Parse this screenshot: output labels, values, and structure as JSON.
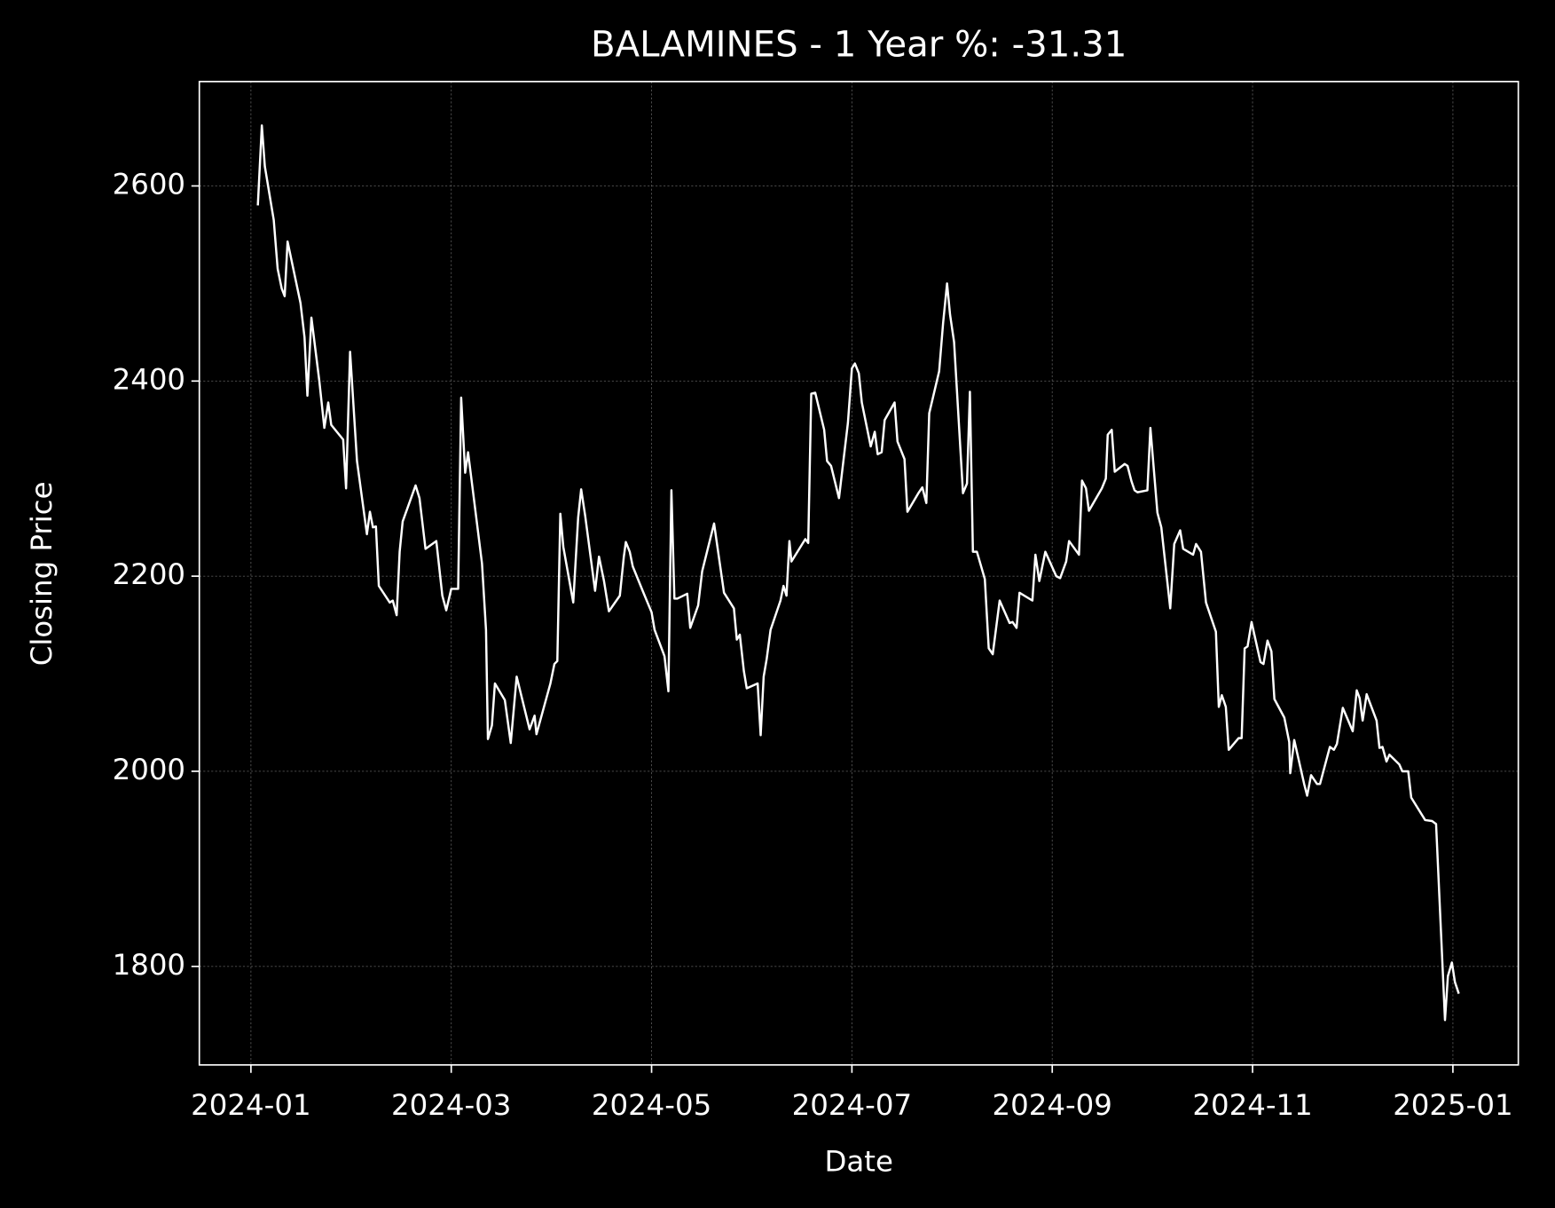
{
  "chart_data": {
    "type": "line",
    "title": "BALAMINES - 1 Year %: -31.31",
    "x_label": "Date",
    "y_label": "Closing Price",
    "color": "#ffffff",
    "grid": true,
    "xlim": [
      -0.515,
      12.653
    ],
    "ylim": [
      1699,
      2707
    ],
    "xticks": [
      {
        "value": 0,
        "label": "2024-01"
      },
      {
        "value": 2,
        "label": "2024-03"
      },
      {
        "value": 4,
        "label": "2024-05"
      },
      {
        "value": 6,
        "label": "2024-07"
      },
      {
        "value": 8,
        "label": "2024-09"
      },
      {
        "value": 10,
        "label": "2024-11"
      },
      {
        "value": 12,
        "label": "2025-01"
      }
    ],
    "yticks": [
      1800,
      2000,
      2200,
      2400,
      2600
    ],
    "x": [
      0.069,
      0.109,
      0.139,
      0.228,
      0.267,
      0.307,
      0.337,
      0.366,
      0.495,
      0.535,
      0.564,
      0.604,
      0.683,
      0.733,
      0.772,
      0.802,
      0.921,
      0.95,
      0.99,
      1.059,
      1.158,
      1.188,
      1.218,
      1.248,
      1.277,
      1.386,
      1.416,
      1.455,
      1.485,
      1.515,
      1.644,
      1.683,
      1.743,
      1.851,
      1.911,
      1.95,
      2.0,
      2.069,
      2.099,
      2.139,
      2.168,
      2.307,
      2.347,
      2.366,
      2.406,
      2.436,
      2.535,
      2.594,
      2.653,
      2.782,
      2.832,
      2.851,
      2.99,
      3.03,
      3.059,
      3.089,
      3.119,
      3.218,
      3.267,
      3.297,
      3.337,
      3.436,
      3.475,
      3.525,
      3.574,
      3.683,
      3.723,
      3.743,
      3.782,
      3.812,
      3.911,
      4.0,
      4.03,
      4.129,
      4.168,
      4.198,
      4.228,
      4.257,
      4.356,
      4.386,
      4.465,
      4.505,
      4.624,
      4.723,
      4.822,
      4.851,
      4.881,
      4.921,
      4.95,
      5.059,
      5.089,
      5.119,
      5.149,
      5.188,
      5.287,
      5.317,
      5.347,
      5.376,
      5.396,
      5.535,
      5.564,
      5.594,
      5.634,
      5.723,
      5.752,
      5.792,
      5.871,
      5.96,
      6.0,
      6.03,
      6.069,
      6.099,
      6.188,
      6.228,
      6.257,
      6.297,
      6.327,
      6.426,
      6.455,
      6.525,
      6.554,
      6.663,
      6.703,
      6.743,
      6.772,
      6.871,
      6.911,
      6.95,
      6.98,
      7.02,
      7.109,
      7.149,
      7.178,
      7.208,
      7.248,
      7.327,
      7.366,
      7.406,
      7.475,
      7.574,
      7.604,
      7.644,
      7.673,
      7.802,
      7.832,
      7.871,
      7.931,
      8.04,
      8.079,
      8.139,
      8.168,
      8.267,
      8.297,
      8.337,
      8.366,
      8.495,
      8.535,
      8.554,
      8.594,
      8.624,
      8.723,
      8.752,
      8.792,
      8.822,
      8.851,
      8.95,
      8.98,
      9.05,
      9.089,
      9.178,
      9.218,
      9.277,
      9.307,
      9.406,
      9.436,
      9.485,
      9.535,
      9.634,
      9.663,
      9.693,
      9.733,
      9.762,
      9.861,
      9.891,
      9.921,
      9.95,
      9.99,
      10.079,
      10.109,
      10.149,
      10.188,
      10.218,
      10.317,
      10.366,
      10.376,
      10.416,
      10.515,
      10.545,
      10.584,
      10.644,
      10.673,
      10.772,
      10.812,
      10.842,
      10.901,
      11.0,
      11.04,
      11.069,
      11.099,
      11.139,
      11.238,
      11.267,
      11.297,
      11.337,
      11.366,
      11.465,
      11.495,
      11.554,
      11.584,
      11.723,
      11.792,
      11.832,
      11.921,
      11.95,
      11.99,
      12.02,
      12.059
    ],
    "values": [
      2580,
      2662,
      2620,
      2565,
      2515,
      2495,
      2487,
      2543,
      2480,
      2445,
      2385,
      2465,
      2400,
      2352,
      2378,
      2355,
      2340,
      2290,
      2430,
      2318,
      2243,
      2266,
      2250,
      2251,
      2190,
      2173,
      2175,
      2160,
      2225,
      2256,
      2293,
      2280,
      2228,
      2236,
      2180,
      2165,
      2187,
      2187,
      2383,
      2306,
      2327,
      2213,
      2145,
      2033,
      2047,
      2090,
      2073,
      2029,
      2097,
      2043,
      2057,
      2038,
      2090,
      2110,
      2113,
      2264,
      2230,
      2173,
      2260,
      2289,
      2262,
      2185,
      2220,
      2195,
      2164,
      2180,
      2220,
      2235,
      2225,
      2210,
      2185,
      2163,
      2145,
      2118,
      2082,
      2288,
      2177,
      2177,
      2182,
      2147,
      2170,
      2205,
      2254,
      2183,
      2167,
      2135,
      2140,
      2103,
      2085,
      2090,
      2037,
      2097,
      2115,
      2145,
      2175,
      2190,
      2180,
      2236,
      2215,
      2238,
      2234,
      2387,
      2388,
      2350,
      2318,
      2313,
      2280,
      2357,
      2413,
      2418,
      2408,
      2378,
      2333,
      2348,
      2325,
      2327,
      2360,
      2378,
      2338,
      2320,
      2266,
      2285,
      2291,
      2275,
      2367,
      2410,
      2460,
      2500,
      2468,
      2440,
      2285,
      2295,
      2389,
      2225,
      2225,
      2197,
      2126,
      2120,
      2175,
      2152,
      2153,
      2147,
      2183,
      2175,
      2222,
      2195,
      2225,
      2200,
      2198,
      2215,
      2236,
      2222,
      2298,
      2290,
      2267,
      2290,
      2300,
      2345,
      2350,
      2307,
      2315,
      2313,
      2297,
      2288,
      2286,
      2288,
      2352,
      2265,
      2250,
      2167,
      2233,
      2247,
      2228,
      2222,
      2233,
      2225,
      2173,
      2143,
      2066,
      2078,
      2066,
      2022,
      2034,
      2034,
      2126,
      2128,
      2153,
      2112,
      2110,
      2134,
      2123,
      2074,
      2055,
      2030,
      1998,
      2032,
      1987,
      1975,
      1996,
      1987,
      1987,
      2025,
      2022,
      2028,
      2065,
      2041,
      2083,
      2075,
      2052,
      2079,
      2052,
      2024,
      2025,
      2010,
      2017,
      2007,
      2000,
      2000,
      1973,
      1950,
      1949,
      1946,
      1745,
      1790,
      1804,
      1784,
      1772
    ]
  }
}
